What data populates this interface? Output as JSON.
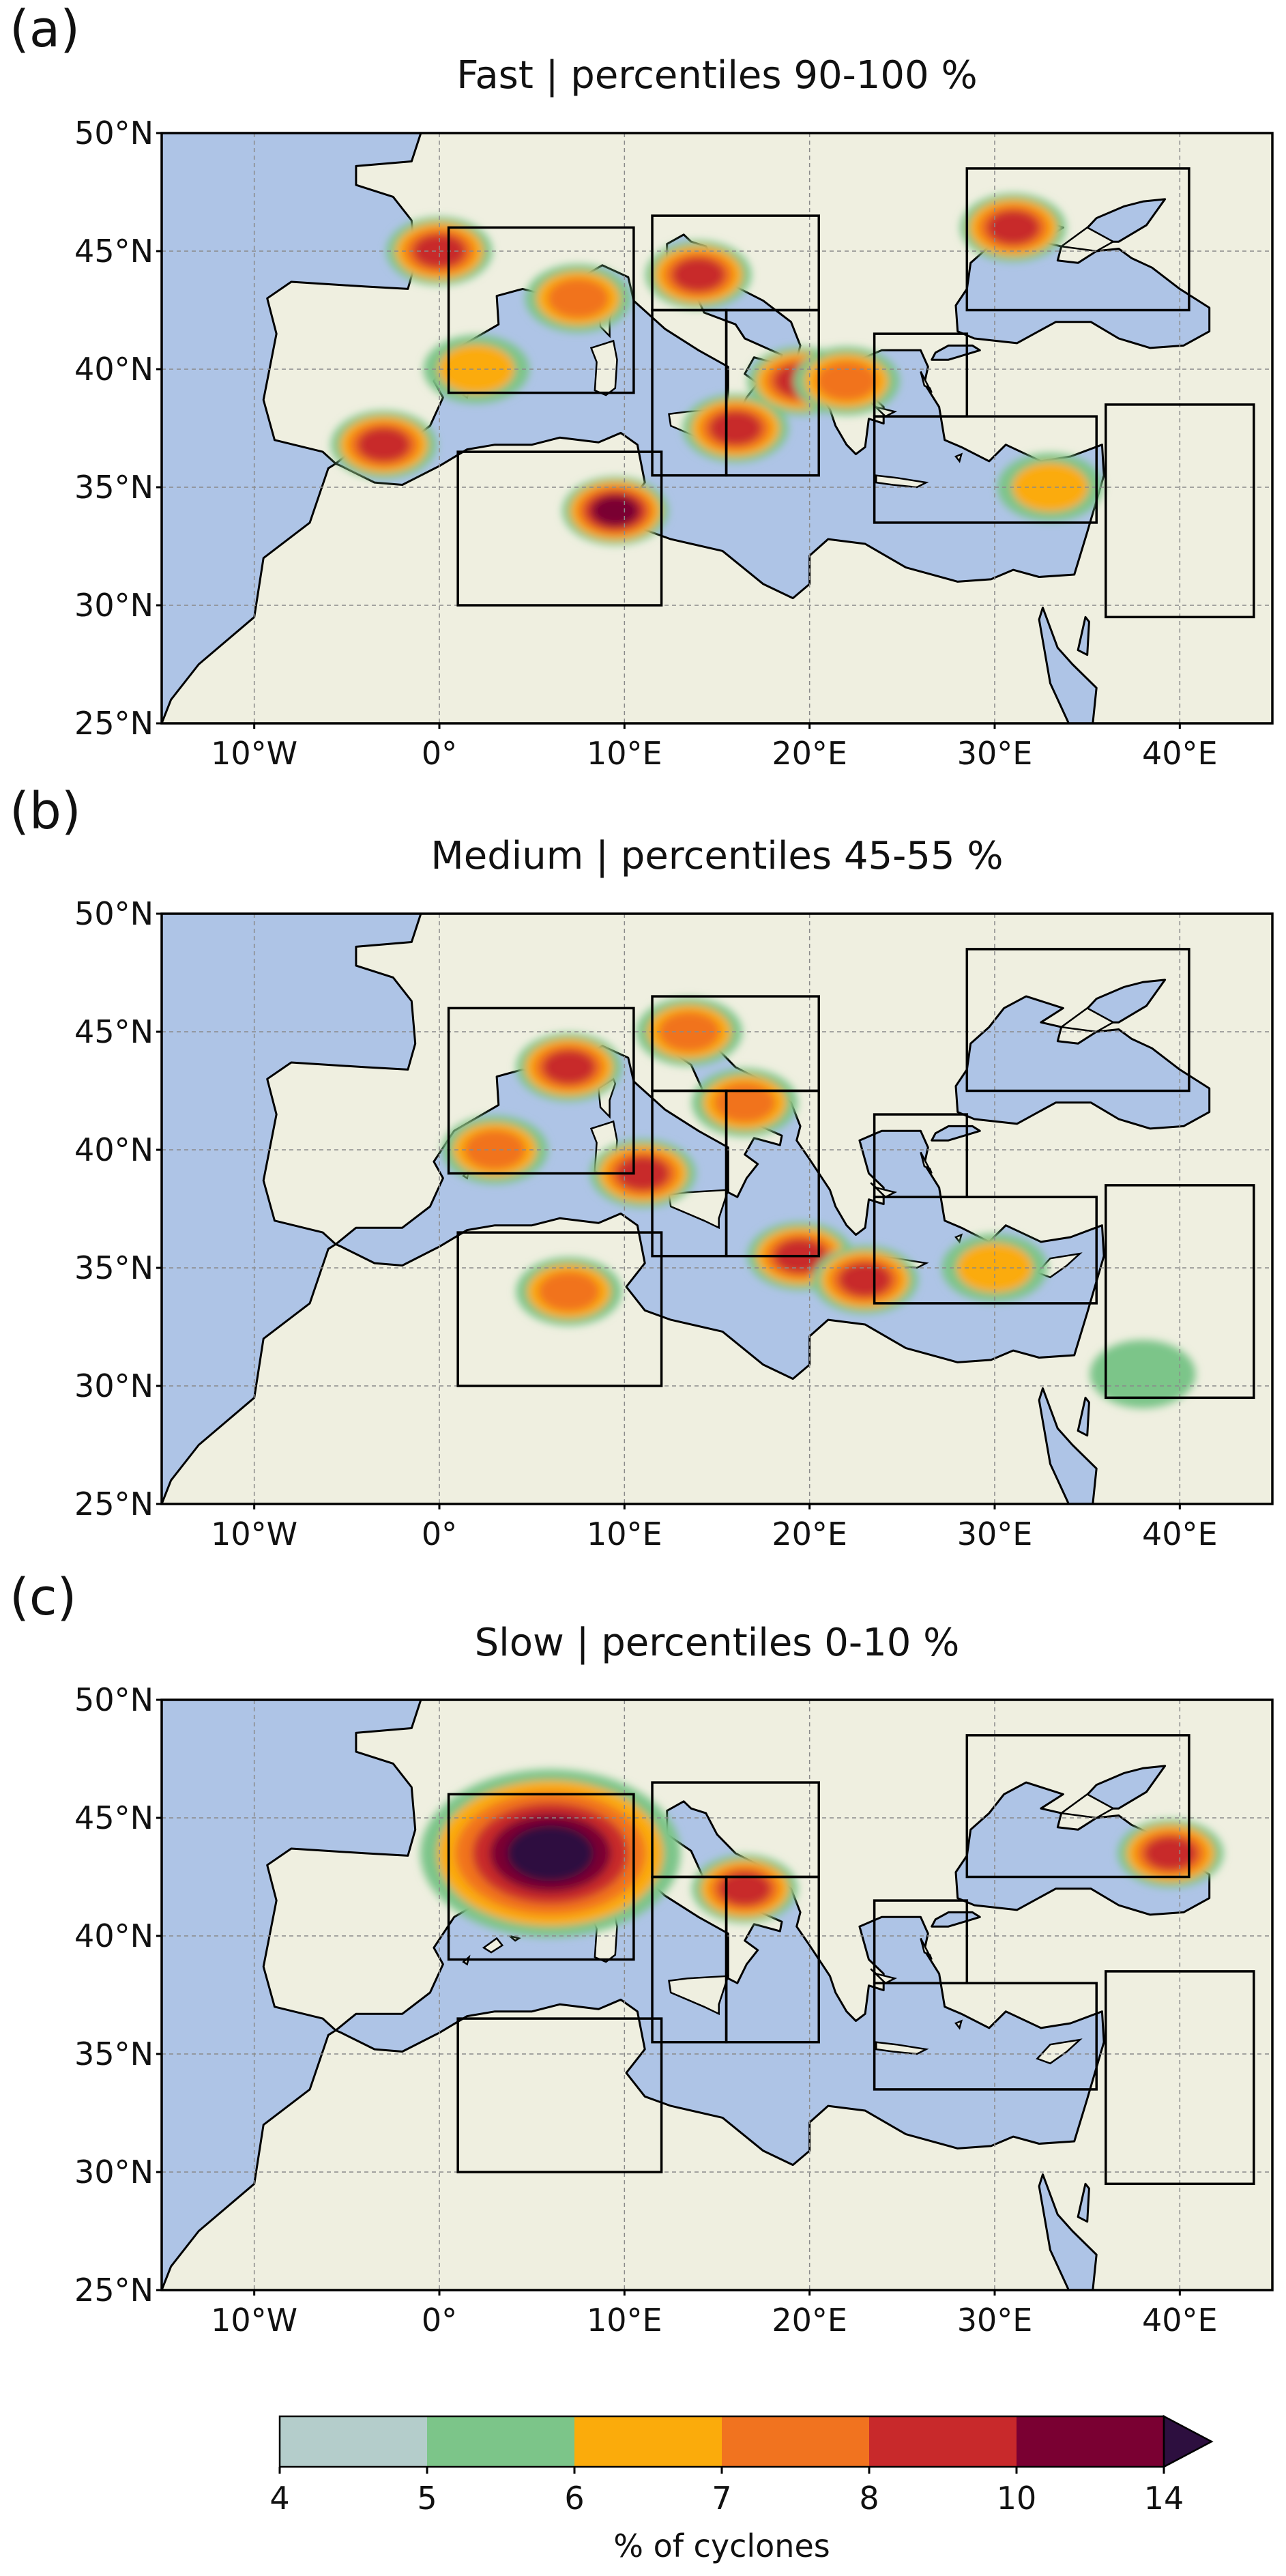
{
  "panels": [
    {
      "letter": "(a)",
      "title": "Fast | percentiles 90-100 %",
      "speed": "fast"
    },
    {
      "letter": "(b)",
      "title": "Medium | percentiles 45-55 %",
      "speed": "medium"
    },
    {
      "letter": "(c)",
      "title": "Slow | percentiles 0-10 %",
      "speed": "slow"
    }
  ],
  "map": {
    "extent": {
      "lon": [
        -15,
        45
      ],
      "lat": [
        25,
        50
      ]
    },
    "lat_ticks": [
      {
        "value": 50,
        "label": "50°N"
      },
      {
        "value": 45,
        "label": "45°N"
      },
      {
        "value": 40,
        "label": "40°N"
      },
      {
        "value": 35,
        "label": "35°N"
      },
      {
        "value": 30,
        "label": "30°N"
      },
      {
        "value": 25,
        "label": "25°N"
      }
    ],
    "lon_ticks": [
      {
        "value": -10,
        "label": "10°W"
      },
      {
        "value": 0,
        "label": "0°"
      },
      {
        "value": 10,
        "label": "10°E"
      },
      {
        "value": 20,
        "label": "20°E"
      },
      {
        "value": 30,
        "label": "30°E"
      },
      {
        "value": 40,
        "label": "40°E"
      }
    ],
    "land_color": "#efefe0",
    "sea_color": "#aec4e6",
    "boxes": [
      {
        "lon": [
          0.5,
          10.5
        ],
        "lat": [
          39,
          46
        ]
      },
      {
        "lon": [
          11.5,
          20.5
        ],
        "lat": [
          42.5,
          46.5
        ]
      },
      {
        "lon": [
          11.5,
          15.5
        ],
        "lat": [
          35.5,
          42.5
        ]
      },
      {
        "lon": [
          15.5,
          20.5
        ],
        "lat": [
          35.5,
          42.5
        ]
      },
      {
        "lon": [
          1,
          12
        ],
        "lat": [
          30,
          36.5
        ]
      },
      {
        "lon": [
          23.5,
          28.5
        ],
        "lat": [
          38,
          41.5
        ]
      },
      {
        "lon": [
          23.5,
          35.5
        ],
        "lat": [
          33.5,
          38
        ]
      },
      {
        "lon": [
          28.5,
          40.5
        ],
        "lat": [
          42.5,
          48.5
        ]
      },
      {
        "lon": [
          36,
          44
        ],
        "lat": [
          29.5,
          38.5
        ]
      }
    ]
  },
  "colorbar": {
    "label": "% of cyclones",
    "bounds": [
      "4",
      "5",
      "6",
      "7",
      "8",
      "10",
      "14"
    ],
    "colors": [
      "#b4cdcb",
      "#7cc589",
      "#fbab0b",
      "#f1731f",
      "#c8292b",
      "#7a0032"
    ],
    "extend_color": "#2d0f3f"
  },
  "chart_data": [
    {
      "type": "heatmap",
      "title": "Fast | percentiles 90-100 %",
      "value_label": "% of cyclones",
      "hotspots": [
        {
          "lon": 0,
          "lat": 45,
          "level": 8
        },
        {
          "lon": -3,
          "lat": 36.8,
          "level": 9
        },
        {
          "lon": 7.5,
          "lat": 43,
          "level": 7
        },
        {
          "lon": 2,
          "lat": 40,
          "level": 6
        },
        {
          "lon": 9.5,
          "lat": 34,
          "level": 10
        },
        {
          "lon": 14,
          "lat": 44,
          "level": 9
        },
        {
          "lon": 16,
          "lat": 37.5,
          "level": 9
        },
        {
          "lon": 19.5,
          "lat": 39.5,
          "level": 8
        },
        {
          "lon": 22,
          "lat": 39.5,
          "level": 7
        },
        {
          "lon": 31,
          "lat": 46,
          "level": 9
        },
        {
          "lon": 33,
          "lat": 35,
          "level": 6
        }
      ]
    },
    {
      "type": "heatmap",
      "title": "Medium | percentiles 45-55 %",
      "value_label": "% of cyclones",
      "hotspots": [
        {
          "lon": 7,
          "lat": 43.5,
          "level": 9
        },
        {
          "lon": 3,
          "lat": 40,
          "level": 7
        },
        {
          "lon": 13.5,
          "lat": 45,
          "level": 7
        },
        {
          "lon": 16.5,
          "lat": 42,
          "level": 7
        },
        {
          "lon": 11,
          "lat": 39,
          "level": 8
        },
        {
          "lon": 19.5,
          "lat": 35.5,
          "level": 9
        },
        {
          "lon": 23,
          "lat": 34.5,
          "level": 8
        },
        {
          "lon": 7,
          "lat": 34,
          "level": 7
        },
        {
          "lon": 30,
          "lat": 35,
          "level": 6
        },
        {
          "lon": 38,
          "lat": 30.5,
          "level": 5
        }
      ]
    },
    {
      "type": "heatmap",
      "title": "Slow | percentiles 0-10 %",
      "value_label": "% of cyclones",
      "hotspots": [
        {
          "lon": 6,
          "lat": 43.5,
          "level": 14
        },
        {
          "lon": 16.5,
          "lat": 42,
          "level": 8
        },
        {
          "lon": 39.5,
          "lat": 43.5,
          "level": 9
        }
      ]
    }
  ]
}
